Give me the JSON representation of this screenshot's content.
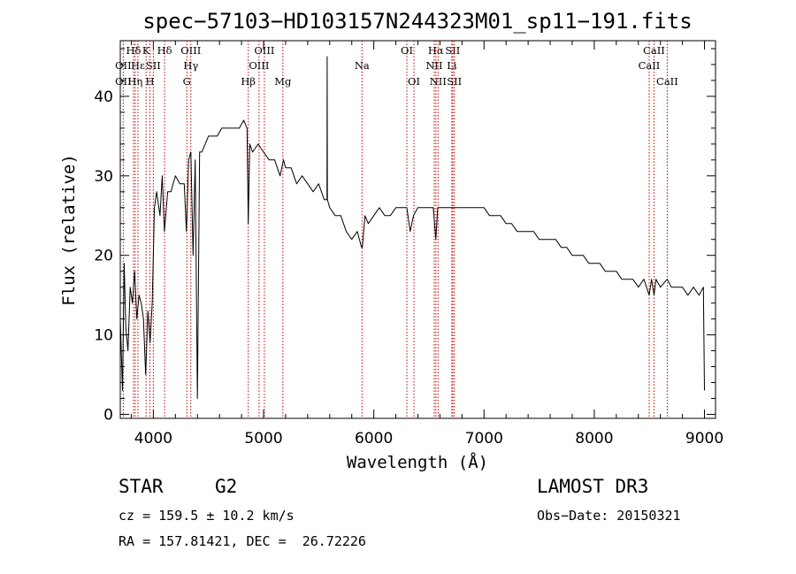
{
  "chart_data": {
    "type": "line",
    "title": "spec−57103−HD103157N244323M01_sp11−191.fits",
    "xlabel": "Wavelength (Å)",
    "ylabel": "Flux (relative)",
    "xlim": [
      3700,
      9100
    ],
    "ylim": [
      -0.5,
      47
    ],
    "xticks": [
      4000,
      5000,
      6000,
      7000,
      8000,
      9000
    ],
    "xtick_labels": [
      "4000",
      "5000",
      "6000",
      "7000",
      "8000",
      "9000"
    ],
    "yticks": [
      0,
      10,
      20,
      30,
      40
    ],
    "ytick_labels": [
      "0",
      "10",
      "20",
      "30",
      "40"
    ],
    "grid": false,
    "series": [
      {
        "name": "spectrum",
        "color": "#000000",
        "x": [
          3700,
          3720,
          3735,
          3750,
          3770,
          3790,
          3810,
          3830,
          3850,
          3870,
          3890,
          3910,
          3930,
          3950,
          3970,
          3990,
          4010,
          4030,
          4060,
          4080,
          4100,
          4130,
          4160,
          4200,
          4240,
          4280,
          4300,
          4320,
          4340,
          4360,
          4380,
          4400,
          4420,
          4440,
          4470,
          4500,
          4540,
          4580,
          4620,
          4660,
          4700,
          4740,
          4780,
          4820,
          4850,
          4861,
          4875,
          4900,
          4950,
          5000,
          5050,
          5100,
          5150,
          5180,
          5200,
          5250,
          5300,
          5350,
          5400,
          5450,
          5500,
          5550,
          5575,
          5577,
          5579,
          5600,
          5650,
          5700,
          5750,
          5800,
          5850,
          5889,
          5896,
          5920,
          5950,
          6000,
          6050,
          6100,
          6150,
          6200,
          6250,
          6300,
          6330,
          6360,
          6400,
          6450,
          6500,
          6540,
          6563,
          6580,
          6600,
          6650,
          6700,
          6720,
          6750,
          6800,
          6850,
          6900,
          6950,
          7000,
          7050,
          7100,
          7150,
          7200,
          7250,
          7300,
          7350,
          7400,
          7450,
          7500,
          7550,
          7600,
          7650,
          7700,
          7750,
          7800,
          7850,
          7900,
          7950,
          8000,
          8050,
          8100,
          8150,
          8200,
          8250,
          8300,
          8350,
          8400,
          8450,
          8498,
          8520,
          8542,
          8560,
          8600,
          8662,
          8700,
          8750,
          8800,
          8850,
          8900,
          8950,
          8990,
          9000
        ],
        "values": [
          12,
          3,
          19,
          11,
          8,
          16,
          14,
          18,
          12,
          15,
          14,
          12,
          5,
          13,
          9,
          14,
          26,
          28,
          25,
          30,
          23,
          28,
          28,
          30,
          29,
          29,
          23,
          32,
          33,
          20,
          32,
          2,
          33,
          33,
          34,
          35,
          35,
          35,
          36,
          36,
          36,
          36,
          36,
          37,
          36,
          24,
          34,
          33,
          34,
          33,
          32,
          32,
          30,
          32,
          31,
          31,
          29,
          30,
          29,
          28,
          29,
          27,
          27,
          45,
          27,
          26,
          25,
          25,
          23,
          22,
          23,
          21,
          21,
          25,
          24,
          25,
          26,
          25,
          25,
          26,
          26,
          26,
          23,
          25,
          26,
          26,
          26,
          26,
          22,
          26,
          26,
          26,
          26,
          26,
          26,
          26,
          26,
          26,
          26,
          26,
          25,
          25,
          25,
          24,
          24,
          23,
          23,
          23,
          23,
          22,
          22,
          22,
          22,
          21,
          21,
          20,
          20,
          20,
          19,
          19,
          19,
          18,
          18,
          18,
          17,
          17,
          17,
          16,
          17,
          15,
          17,
          15,
          17,
          16,
          17,
          16,
          16,
          16,
          15,
          16,
          15,
          16,
          3
        ]
      }
    ],
    "line_markers": [
      {
        "label": "Hδ",
        "x": 3820,
        "row": 1
      },
      {
        "label": "OII",
        "x": 3727,
        "row": 2
      },
      {
        "label": "OII",
        "x": 3727,
        "row": 3
      },
      {
        "label": "Hε",
        "x": 3860,
        "row": 2
      },
      {
        "label": "Hη",
        "x": 3835,
        "row": 3
      },
      {
        "label": "K",
        "x": 3934,
        "row": 1
      },
      {
        "label": "SII",
        "x": 4000,
        "row": 2
      },
      {
        "label": "H",
        "x": 3969,
        "row": 3
      },
      {
        "label": "Hδ",
        "x": 4102,
        "row": 1
      },
      {
        "label": "OIII",
        "x": 4340,
        "row": 1
      },
      {
        "label": "Hγ",
        "x": 4340,
        "row": 2
      },
      {
        "label": "G",
        "x": 4304,
        "row": 3
      },
      {
        "label": "Hβ",
        "x": 4861,
        "row": 3
      },
      {
        "label": "OIII",
        "x": 5007,
        "row": 1
      },
      {
        "label": "OIII",
        "x": 4959,
        "row": 2
      },
      {
        "label": "Mg",
        "x": 5175,
        "row": 3
      },
      {
        "label": "Na",
        "x": 5893,
        "row": 2
      },
      {
        "label": "OI",
        "x": 6300,
        "row": 1
      },
      {
        "label": "OI",
        "x": 6364,
        "row": 3
      },
      {
        "label": "Hα",
        "x": 6563,
        "row": 1
      },
      {
        "label": "NII",
        "x": 6548,
        "row": 2
      },
      {
        "label": "NII",
        "x": 6583,
        "row": 3
      },
      {
        "label": "SII",
        "x": 6716,
        "row": 1
      },
      {
        "label": "Li",
        "x": 6708,
        "row": 2
      },
      {
        "label": "SII",
        "x": 6731,
        "row": 3
      },
      {
        "label": "CaII",
        "x": 8542,
        "row": 1
      },
      {
        "label": "CaII",
        "x": 8498,
        "row": 2
      },
      {
        "label": "CaII",
        "x": 8662,
        "row": 3
      }
    ]
  },
  "info": {
    "object_class": "STAR",
    "subclass": "G2",
    "survey": "LAMOST DR3",
    "redshift": "cz = 159.5 ± 10.2 km/s",
    "obs_date": "Obs−Date: 20150321",
    "coords": "RA = 157.81421, DEC =  26.72226"
  }
}
